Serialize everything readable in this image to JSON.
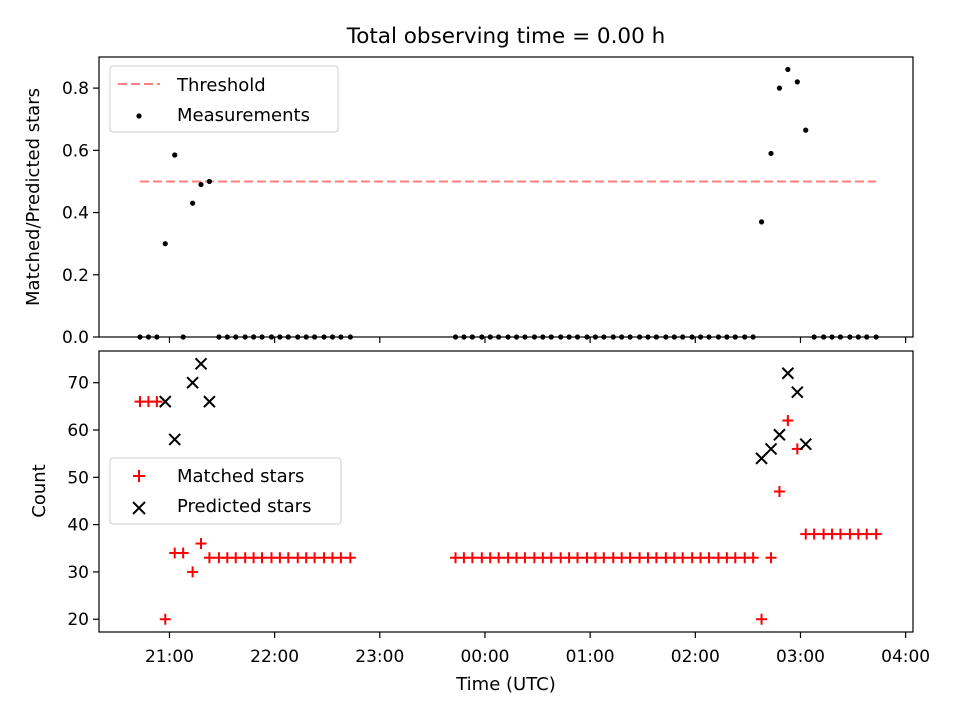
{
  "title": "Total observing time = 0.00 h",
  "colors": {
    "threshold": "#ff7f7f",
    "measurement": "#000000",
    "matched": "#ff0000",
    "predicted": "#000000"
  },
  "chart_data": [
    {
      "type": "scatter",
      "ylabel": "Matched/Predicted stars",
      "ylim": [
        0,
        0.9
      ],
      "yticks": [
        0.0,
        0.2,
        0.4,
        0.6,
        0.8
      ],
      "ytick_labels": [
        "0.0",
        "0.2",
        "0.4",
        "0.6",
        "0.8"
      ],
      "legend": {
        "position": "upper-left",
        "entries": [
          "Threshold",
          "Measurements"
        ]
      },
      "threshold": {
        "name": "Threshold",
        "y": 0.5,
        "x_start": 20.72,
        "x_end": 27.72
      },
      "measurements": {
        "name": "Measurements",
        "x": [
          20.72,
          20.8,
          20.88,
          20.96,
          21.05,
          21.13,
          21.22,
          21.3,
          21.38,
          21.47,
          21.55,
          21.63,
          21.72,
          21.8,
          21.88,
          21.97,
          22.05,
          22.13,
          22.22,
          22.3,
          22.38,
          22.47,
          22.55,
          22.63,
          22.72,
          23.72,
          23.8,
          23.88,
          23.97,
          24.05,
          24.13,
          24.22,
          24.3,
          24.38,
          24.47,
          24.55,
          24.63,
          24.72,
          24.8,
          24.88,
          24.97,
          25.05,
          25.13,
          25.22,
          25.3,
          25.38,
          25.47,
          25.55,
          25.63,
          25.72,
          25.8,
          25.88,
          25.97,
          26.05,
          26.13,
          26.22,
          26.3,
          26.38,
          26.47,
          26.55,
          26.63,
          26.72,
          26.8,
          26.88,
          26.97,
          27.05,
          27.13,
          27.22,
          27.3,
          27.38,
          27.47,
          27.55,
          27.63,
          27.72
        ],
        "y": [
          0,
          0,
          0,
          0.3,
          0.585,
          0,
          0.43,
          0.49,
          0.5,
          0,
          0,
          0,
          0,
          0,
          0,
          0,
          0,
          0,
          0,
          0,
          0,
          0,
          0,
          0,
          0,
          0,
          0,
          0,
          0,
          0,
          0,
          0,
          0,
          0,
          0,
          0,
          0,
          0,
          0,
          0,
          0,
          0,
          0,
          0,
          0,
          0,
          0,
          0,
          0,
          0,
          0,
          0,
          0,
          0,
          0,
          0,
          0,
          0,
          0,
          0,
          0.37,
          0.59,
          0.8,
          0.86,
          0.82,
          0.665,
          0,
          0,
          0,
          0,
          0,
          0,
          0,
          0
        ]
      }
    },
    {
      "type": "scatter",
      "xlabel": "Time (UTC)",
      "ylabel": "Count",
      "xlim": [
        20.33,
        28.07
      ],
      "ylim": [
        17.3,
        76.7
      ],
      "xticks": [
        21,
        22,
        23,
        24,
        25,
        26,
        27,
        28
      ],
      "xtick_labels": [
        "21:00",
        "22:00",
        "23:00",
        "00:00",
        "01:00",
        "02:00",
        "03:00",
        "04:00"
      ],
      "yticks": [
        20,
        30,
        40,
        50,
        60,
        70
      ],
      "ytick_labels": [
        "20",
        "30",
        "40",
        "50",
        "60",
        "70"
      ],
      "legend": {
        "position": "center-left",
        "entries": [
          "Matched stars",
          "Predicted stars"
        ]
      },
      "matched": {
        "name": "Matched stars",
        "x": [
          20.72,
          20.8,
          20.88,
          20.96,
          21.05,
          21.13,
          21.22,
          21.3,
          21.38,
          21.47,
          21.55,
          21.63,
          21.72,
          21.8,
          21.88,
          21.97,
          22.05,
          22.13,
          22.22,
          22.3,
          22.38,
          22.47,
          22.55,
          22.63,
          22.72,
          23.72,
          23.8,
          23.88,
          23.97,
          24.05,
          24.13,
          24.22,
          24.3,
          24.38,
          24.47,
          24.55,
          24.63,
          24.72,
          24.8,
          24.88,
          24.97,
          25.05,
          25.13,
          25.22,
          25.3,
          25.38,
          25.47,
          25.55,
          25.63,
          25.72,
          25.8,
          25.88,
          25.97,
          26.05,
          26.13,
          26.22,
          26.3,
          26.38,
          26.47,
          26.55,
          26.63,
          26.72,
          26.8,
          26.88,
          26.97,
          27.05,
          27.13,
          27.22,
          27.3,
          27.38,
          27.47,
          27.55,
          27.63,
          27.72
        ],
        "y": [
          66,
          66,
          66,
          20,
          34,
          34,
          30,
          36,
          33,
          33,
          33,
          33,
          33,
          33,
          33,
          33,
          33,
          33,
          33,
          33,
          33,
          33,
          33,
          33,
          33,
          33,
          33,
          33,
          33,
          33,
          33,
          33,
          33,
          33,
          33,
          33,
          33,
          33,
          33,
          33,
          33,
          33,
          33,
          33,
          33,
          33,
          33,
          33,
          33,
          33,
          33,
          33,
          33,
          33,
          33,
          33,
          33,
          33,
          33,
          33,
          20,
          33,
          47,
          62,
          56,
          38,
          38,
          38,
          38,
          38,
          38,
          38,
          38,
          38
        ]
      },
      "predicted": {
        "name": "Predicted stars",
        "x": [
          20.96,
          21.05,
          21.22,
          21.3,
          21.38,
          26.63,
          26.72,
          26.8,
          26.88,
          26.97,
          27.05
        ],
        "y": [
          66,
          58,
          70,
          74,
          66,
          54,
          56,
          59,
          72,
          68,
          57
        ]
      }
    }
  ]
}
